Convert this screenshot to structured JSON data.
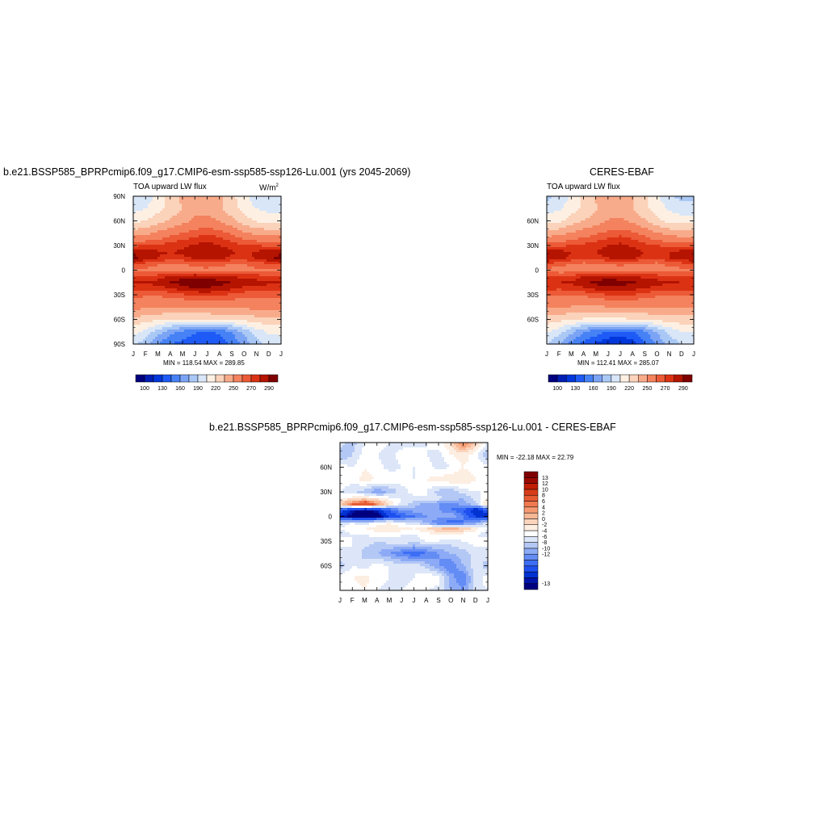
{
  "panels": {
    "left": {
      "title": "b.e21.BSSP585_BPRPcmip6.f09_g17.CMIP6-esm-ssp585-ssp126-Lu.001 (yrs 2045-2069)",
      "left_string": "TOA upward LW flux",
      "right_string_base": "W/m",
      "right_string_sup": "2",
      "minmax": "MIN = 118.54 MAX = 289.85"
    },
    "right": {
      "title": "CERES-EBAF",
      "left_string": "TOA upward LW flux",
      "minmax": "MIN = 112.41 MAX = 285.07"
    },
    "diff": {
      "title": "b.e21.BSSP585_BPRPcmip6.f09_g17.CMIP6-esm-ssp585-ssp126-Lu.001 - CERES-EBAF",
      "minmax": "MIN = -22.18 MAX =  22.79"
    }
  },
  "colors": {
    "abs_scale": [
      "#00007f",
      "#001eb4",
      "#0037dc",
      "#1e5af5",
      "#4682f5",
      "#7ca4f5",
      "#aac8f5",
      "#d8e6f8",
      "#fdf0e3",
      "#fbd2ba",
      "#f8ab8a",
      "#f4825e",
      "#ec5a37",
      "#dc3214",
      "#b41400",
      "#7f0000"
    ],
    "diff_scale": [
      "#00007f",
      "#0014aa",
      "#0032d2",
      "#1e50f0",
      "#3c6ef5",
      "#648cf5",
      "#8caaf5",
      "#b4c8f5",
      "#dce6f8",
      "#ffffff",
      "#fdeee2",
      "#fbd4bc",
      "#f8b896",
      "#f59a72",
      "#f07a50",
      "#e65a32",
      "#d73c18",
      "#c01e05",
      "#9a0a00",
      "#7f0000"
    ]
  },
  "chart_data": [
    {
      "type": "heatmap",
      "name": "model",
      "title": "b.e21.BSSP585_BPRPcmip6.f09_g17.CMIP6-esm-ssp585-ssp126-Lu.001 (yrs 2045-2069)",
      "variable": "TOA upward LW flux",
      "units": "W/m2",
      "x_labels": [
        "J",
        "F",
        "M",
        "A",
        "M",
        "J",
        "J",
        "A",
        "S",
        "O",
        "N",
        "D",
        "J"
      ],
      "y_labels": [
        "90N",
        "60N",
        "30N",
        "0",
        "30S",
        "60S",
        "90S"
      ],
      "ylim": [
        -90,
        90
      ],
      "colorbar_labels": [
        "100",
        "130",
        "160",
        "190",
        "220",
        "250",
        "270",
        "290"
      ],
      "min": 118.54,
      "max": 289.85,
      "lat_rows": [
        90,
        75,
        60,
        45,
        30,
        22,
        15,
        8,
        0,
        -8,
        -15,
        -22,
        -30,
        -45,
        -60,
        -75,
        -90
      ],
      "values": [
        [
          175,
          180,
          195,
          210,
          225,
          235,
          235,
          225,
          210,
          195,
          180,
          175,
          175
        ],
        [
          185,
          190,
          200,
          210,
          220,
          230,
          230,
          222,
          210,
          200,
          190,
          185,
          185
        ],
        [
          200,
          205,
          215,
          222,
          230,
          238,
          240,
          235,
          225,
          212,
          203,
          200,
          200
        ],
        [
          228,
          232,
          238,
          245,
          250,
          255,
          258,
          255,
          248,
          238,
          232,
          228,
          228
        ],
        [
          258,
          260,
          262,
          265,
          268,
          272,
          275,
          270,
          265,
          262,
          260,
          258,
          258
        ],
        [
          278,
          276,
          272,
          270,
          272,
          276,
          280,
          278,
          272,
          268,
          272,
          276,
          278
        ],
        [
          282,
          278,
          270,
          266,
          268,
          272,
          276,
          274,
          268,
          266,
          272,
          280,
          282
        ],
        [
          262,
          258,
          252,
          250,
          250,
          252,
          254,
          252,
          250,
          250,
          255,
          260,
          262
        ],
        [
          248,
          246,
          244,
          245,
          246,
          248,
          248,
          247,
          246,
          246,
          248,
          248,
          248
        ],
        [
          262,
          262,
          266,
          272,
          276,
          278,
          276,
          272,
          270,
          268,
          265,
          262,
          262
        ],
        [
          272,
          272,
          274,
          280,
          286,
          289,
          288,
          284,
          280,
          276,
          274,
          272,
          272
        ],
        [
          266,
          264,
          266,
          270,
          276,
          280,
          280,
          276,
          272,
          268,
          266,
          266,
          266
        ],
        [
          254,
          252,
          252,
          254,
          258,
          262,
          264,
          262,
          258,
          254,
          252,
          254,
          254
        ],
        [
          240,
          238,
          236,
          235,
          235,
          236,
          238,
          238,
          238,
          238,
          240,
          240,
          240
        ],
        [
          215,
          212,
          208,
          205,
          204,
          203,
          204,
          206,
          208,
          210,
          214,
          215,
          215
        ],
        [
          195,
          185,
          168,
          150,
          140,
          132,
          128,
          132,
          145,
          165,
          182,
          193,
          195
        ],
        [
          180,
          165,
          145,
          130,
          125,
          120,
          120,
          122,
          132,
          150,
          168,
          180,
          180
        ]
      ]
    },
    {
      "type": "heatmap",
      "name": "obs",
      "title": "CERES-EBAF",
      "variable": "TOA upward LW flux",
      "x_labels": [
        "J",
        "F",
        "M",
        "A",
        "M",
        "J",
        "J",
        "A",
        "S",
        "O",
        "N",
        "D",
        "J"
      ],
      "y_labels": [
        "60N",
        "30N",
        "0",
        "30S",
        "60S"
      ],
      "ylim": [
        -90,
        90
      ],
      "colorbar_labels": [
        "100",
        "130",
        "160",
        "190",
        "220",
        "250",
        "270",
        "290"
      ],
      "min": 112.41,
      "max": 285.07,
      "lat_rows": [
        90,
        75,
        60,
        45,
        30,
        22,
        15,
        8,
        0,
        -8,
        -15,
        -22,
        -30,
        -45,
        -60,
        -75,
        -90
      ],
      "values": [
        [
          170,
          178,
          192,
          208,
          222,
          232,
          232,
          222,
          208,
          192,
          178,
          170,
          170
        ],
        [
          182,
          188,
          198,
          208,
          218,
          228,
          228,
          220,
          208,
          198,
          188,
          182,
          182
        ],
        [
          198,
          202,
          212,
          220,
          228,
          236,
          238,
          232,
          222,
          210,
          200,
          198,
          198
        ],
        [
          226,
          230,
          236,
          243,
          248,
          253,
          256,
          253,
          246,
          236,
          230,
          226,
          226
        ],
        [
          256,
          258,
          260,
          263,
          266,
          270,
          273,
          268,
          263,
          260,
          258,
          256,
          256
        ],
        [
          276,
          274,
          270,
          268,
          270,
          274,
          278,
          276,
          270,
          266,
          270,
          274,
          276
        ],
        [
          280,
          276,
          268,
          264,
          266,
          270,
          274,
          272,
          266,
          264,
          270,
          278,
          280
        ],
        [
          260,
          256,
          250,
          248,
          248,
          250,
          252,
          250,
          248,
          248,
          253,
          258,
          260
        ],
        [
          246,
          244,
          242,
          243,
          244,
          246,
          246,
          245,
          244,
          244,
          246,
          246,
          246
        ],
        [
          260,
          260,
          264,
          270,
          274,
          276,
          274,
          270,
          268,
          266,
          263,
          260,
          260
        ],
        [
          270,
          270,
          272,
          278,
          283,
          285,
          284,
          281,
          278,
          274,
          272,
          270,
          270
        ],
        [
          264,
          262,
          264,
          268,
          274,
          278,
          278,
          274,
          270,
          266,
          264,
          264,
          264
        ],
        [
          252,
          250,
          250,
          252,
          256,
          260,
          262,
          260,
          256,
          252,
          250,
          252,
          252
        ],
        [
          238,
          236,
          234,
          233,
          233,
          234,
          236,
          236,
          236,
          236,
          238,
          238,
          238
        ],
        [
          213,
          210,
          206,
          203,
          202,
          201,
          202,
          204,
          206,
          208,
          212,
          213,
          213
        ],
        [
          192,
          182,
          164,
          146,
          136,
          128,
          124,
          128,
          141,
          162,
          180,
          190,
          192
        ],
        [
          176,
          160,
          140,
          125,
          118,
          113,
          113,
          116,
          128,
          146,
          164,
          176,
          176
        ]
      ]
    },
    {
      "type": "heatmap",
      "name": "diff",
      "title": "b.e21.BSSP585_BPRPcmip6.f09_g17.CMIP6-esm-ssp585-ssp126-Lu.001 - CERES-EBAF",
      "x_labels": [
        "J",
        "F",
        "M",
        "A",
        "M",
        "J",
        "J",
        "A",
        "S",
        "O",
        "N",
        "D",
        "J"
      ],
      "y_labels": [
        "60N",
        "30N",
        "0",
        "30S",
        "60S"
      ],
      "ylim": [
        -90,
        90
      ],
      "colorbar_labels": [
        "13",
        "12",
        "10",
        "8",
        "6",
        "4",
        "2",
        "0",
        "-2",
        "-4",
        "-6",
        "-8",
        "-10",
        "-12",
        "-13"
      ],
      "min": -22.18,
      "max": 22.79,
      "lat_rows": [
        90,
        75,
        60,
        45,
        30,
        22,
        15,
        8,
        0,
        -8,
        -15,
        -22,
        -30,
        -45,
        -60,
        -75,
        -90
      ],
      "values": [
        [
          1,
          -1,
          2,
          3,
          2,
          1,
          1,
          2,
          3,
          6,
          13,
          8,
          1
        ],
        [
          -2,
          0,
          3,
          2,
          1,
          3,
          4,
          2,
          1,
          4,
          5,
          3,
          -2
        ],
        [
          3,
          2,
          4,
          3,
          1,
          2,
          2,
          3,
          1,
          2,
          4,
          3,
          3
        ],
        [
          4,
          3,
          5,
          4,
          4,
          3,
          2,
          4,
          5,
          6,
          6,
          4,
          4
        ],
        [
          2,
          0,
          -1,
          -4,
          -2,
          1,
          3,
          2,
          -1,
          -2,
          1,
          2,
          2
        ],
        [
          4,
          5,
          6,
          5,
          3,
          2,
          1,
          2,
          1,
          -1,
          -2,
          1,
          4
        ],
        [
          7,
          14,
          18,
          12,
          6,
          1,
          -1,
          -3,
          -4,
          -5,
          -3,
          -1,
          7
        ],
        [
          -8,
          -12,
          -14,
          -12,
          -8,
          -4,
          -3,
          -3,
          -4,
          -6,
          -8,
          -12,
          -8
        ],
        [
          -12,
          -14,
          -16,
          -14,
          -10,
          -8,
          -6,
          -4,
          -3,
          -2,
          -6,
          -10,
          -12
        ],
        [
          1,
          2,
          1,
          3,
          4,
          2,
          1,
          -2,
          -6,
          -8,
          -6,
          -3,
          1
        ],
        [
          2,
          3,
          4,
          5,
          6,
          5,
          4,
          6,
          8,
          10,
          8,
          5,
          2
        ],
        [
          1,
          2,
          2,
          3,
          3,
          2,
          2,
          3,
          4,
          4,
          3,
          2,
          1
        ],
        [
          3,
          2,
          1,
          0,
          1,
          2,
          1,
          2,
          2,
          1,
          2,
          3,
          3
        ],
        [
          1,
          2,
          -1,
          -2,
          -4,
          -6,
          -8,
          -6,
          -4,
          -2,
          -1,
          1,
          1
        ],
        [
          -1,
          2,
          1,
          3,
          2,
          1,
          2,
          -1,
          -4,
          -6,
          -2,
          1,
          -1
        ],
        [
          3,
          4,
          5,
          3,
          2,
          1,
          2,
          4,
          3,
          -3,
          -6,
          1,
          3
        ],
        [
          2,
          3,
          4,
          2,
          1,
          2,
          3,
          2,
          1,
          -2,
          -4,
          1,
          2
        ]
      ]
    }
  ]
}
